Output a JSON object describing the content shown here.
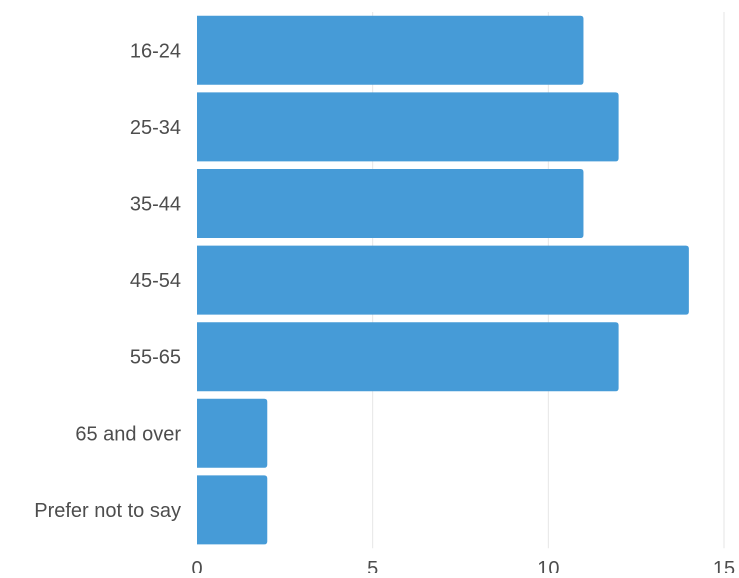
{
  "chart_data": {
    "type": "bar",
    "orientation": "horizontal",
    "categories": [
      "16-24",
      "25-34",
      "35-44",
      "45-54",
      "55-65",
      "65 and over",
      "Prefer not to say"
    ],
    "values": [
      11,
      12,
      11,
      14,
      12,
      2,
      2
    ],
    "xlim": [
      0,
      15
    ],
    "xticks": [
      "0",
      "5",
      "10",
      "15"
    ],
    "xlabel": "",
    "ylabel": "",
    "title": "",
    "grid": true,
    "bar_color": "#469bd7",
    "grid_color": "#e6e6e6",
    "text_color": "#4d4d4d"
  }
}
